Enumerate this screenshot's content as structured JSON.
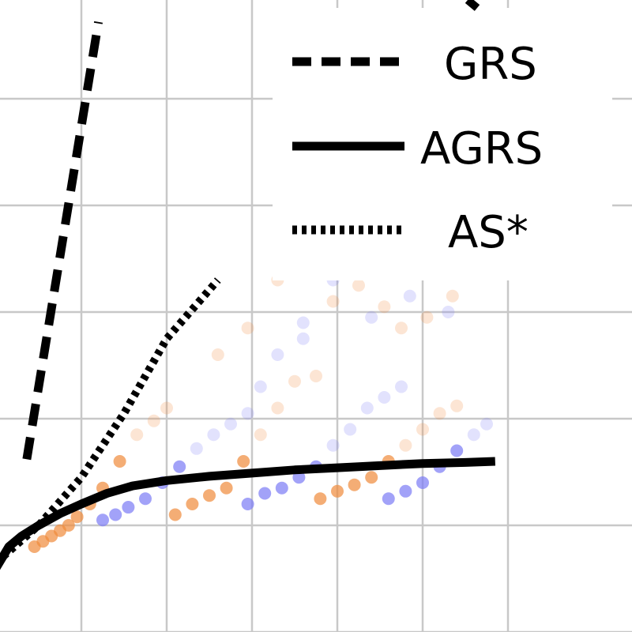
{
  "chart_data": {
    "type": "line",
    "title": "",
    "xlabel": "",
    "ylabel": "",
    "grid": true,
    "legend_position": "top-right",
    "xlim": [
      0,
      6
    ],
    "ylim": [
      0,
      6
    ],
    "series": [
      {
        "name": "GRS",
        "style": "dashed",
        "color": "#000000",
        "x": [
          0.36,
          1.2
        ],
        "y": [
          1.62,
          5.72
        ]
      },
      {
        "name": "AGRS",
        "style": "solid",
        "color": "#000000",
        "x": [
          0.0,
          0.15,
          0.3,
          0.5,
          0.75,
          1.0,
          1.3,
          1.6,
          2.0,
          2.5,
          3.0,
          3.5,
          4.0,
          4.5,
          5.0,
          5.5,
          5.85
        ],
        "y": [
          0.6,
          0.8,
          0.9,
          1.0,
          1.11,
          1.2,
          1.3,
          1.37,
          1.42,
          1.46,
          1.49,
          1.52,
          1.54,
          1.56,
          1.58,
          1.59,
          1.6
        ]
      },
      {
        "name": "AS*",
        "style": "dotted",
        "color": "#000000",
        "x": [
          0.0,
          0.5,
          1.0,
          1.5,
          2.0,
          2.6
        ],
        "y": [
          0.65,
          1.0,
          1.45,
          2.05,
          2.75,
          3.3
        ]
      }
    ],
    "scatter": {
      "orange_color": "#f08a3a",
      "blue_color": "#7b7bf5",
      "clusters": [
        {
          "color": "orange",
          "x": [
            0.45,
            0.55,
            0.65,
            0.75,
            0.85,
            0.95,
            1.1,
            1.25,
            1.45,
            1.65,
            1.85,
            2.0
          ],
          "y": [
            0.8,
            0.85,
            0.9,
            0.95,
            1.0,
            1.08,
            1.2,
            1.35,
            1.6,
            1.85,
            1.98,
            2.1
          ]
        },
        {
          "color": "blue",
          "x": [
            1.25,
            1.4,
            1.55,
            1.75,
            1.95,
            2.15,
            2.35,
            2.55,
            2.75,
            2.95,
            3.1,
            3.3,
            3.6
          ],
          "y": [
            1.05,
            1.1,
            1.17,
            1.25,
            1.4,
            1.55,
            1.72,
            1.85,
            1.95,
            2.05,
            2.3,
            2.6,
            2.75
          ]
        },
        {
          "color": "orange",
          "x": [
            2.1,
            2.3,
            2.5,
            2.7,
            2.9,
            3.1,
            3.3,
            3.5,
            3.75
          ],
          "y": [
            1.1,
            1.2,
            1.28,
            1.35,
            1.6,
            1.85,
            2.1,
            2.35,
            2.4
          ]
        },
        {
          "color": "blue",
          "x": [
            2.95,
            3.15,
            3.35,
            3.55,
            3.75,
            3.95,
            4.15,
            4.35,
            4.55,
            4.75
          ],
          "y": [
            1.2,
            1.3,
            1.35,
            1.45,
            1.55,
            1.75,
            1.9,
            2.1,
            2.2,
            2.3
          ]
        },
        {
          "color": "orange",
          "x": [
            3.8,
            4.0,
            4.2,
            4.4,
            4.6,
            4.8,
            5.0,
            5.2,
            5.4
          ],
          "y": [
            1.25,
            1.32,
            1.38,
            1.45,
            1.6,
            1.75,
            1.9,
            2.05,
            2.12
          ]
        },
        {
          "color": "blue",
          "x": [
            4.6,
            4.8,
            5.0,
            5.2,
            5.4,
            5.6,
            5.75
          ],
          "y": [
            1.25,
            1.32,
            1.4,
            1.55,
            1.7,
            1.85,
            1.95
          ]
        },
        {
          "color": "orange",
          "x": [
            2.6,
            2.95,
            3.3,
            3.65,
            3.95,
            4.25,
            4.55,
            4.75,
            5.05,
            5.35
          ],
          "y": [
            2.6,
            2.85,
            3.3,
            3.7,
            3.1,
            3.25,
            3.05,
            2.85,
            2.95,
            3.15
          ]
        },
        {
          "color": "blue",
          "x": [
            3.6,
            3.95,
            4.4,
            4.85,
            5.3,
            5.15
          ],
          "y": [
            2.9,
            3.3,
            2.95,
            3.15,
            3.0,
            3.95
          ]
        }
      ]
    }
  }
}
